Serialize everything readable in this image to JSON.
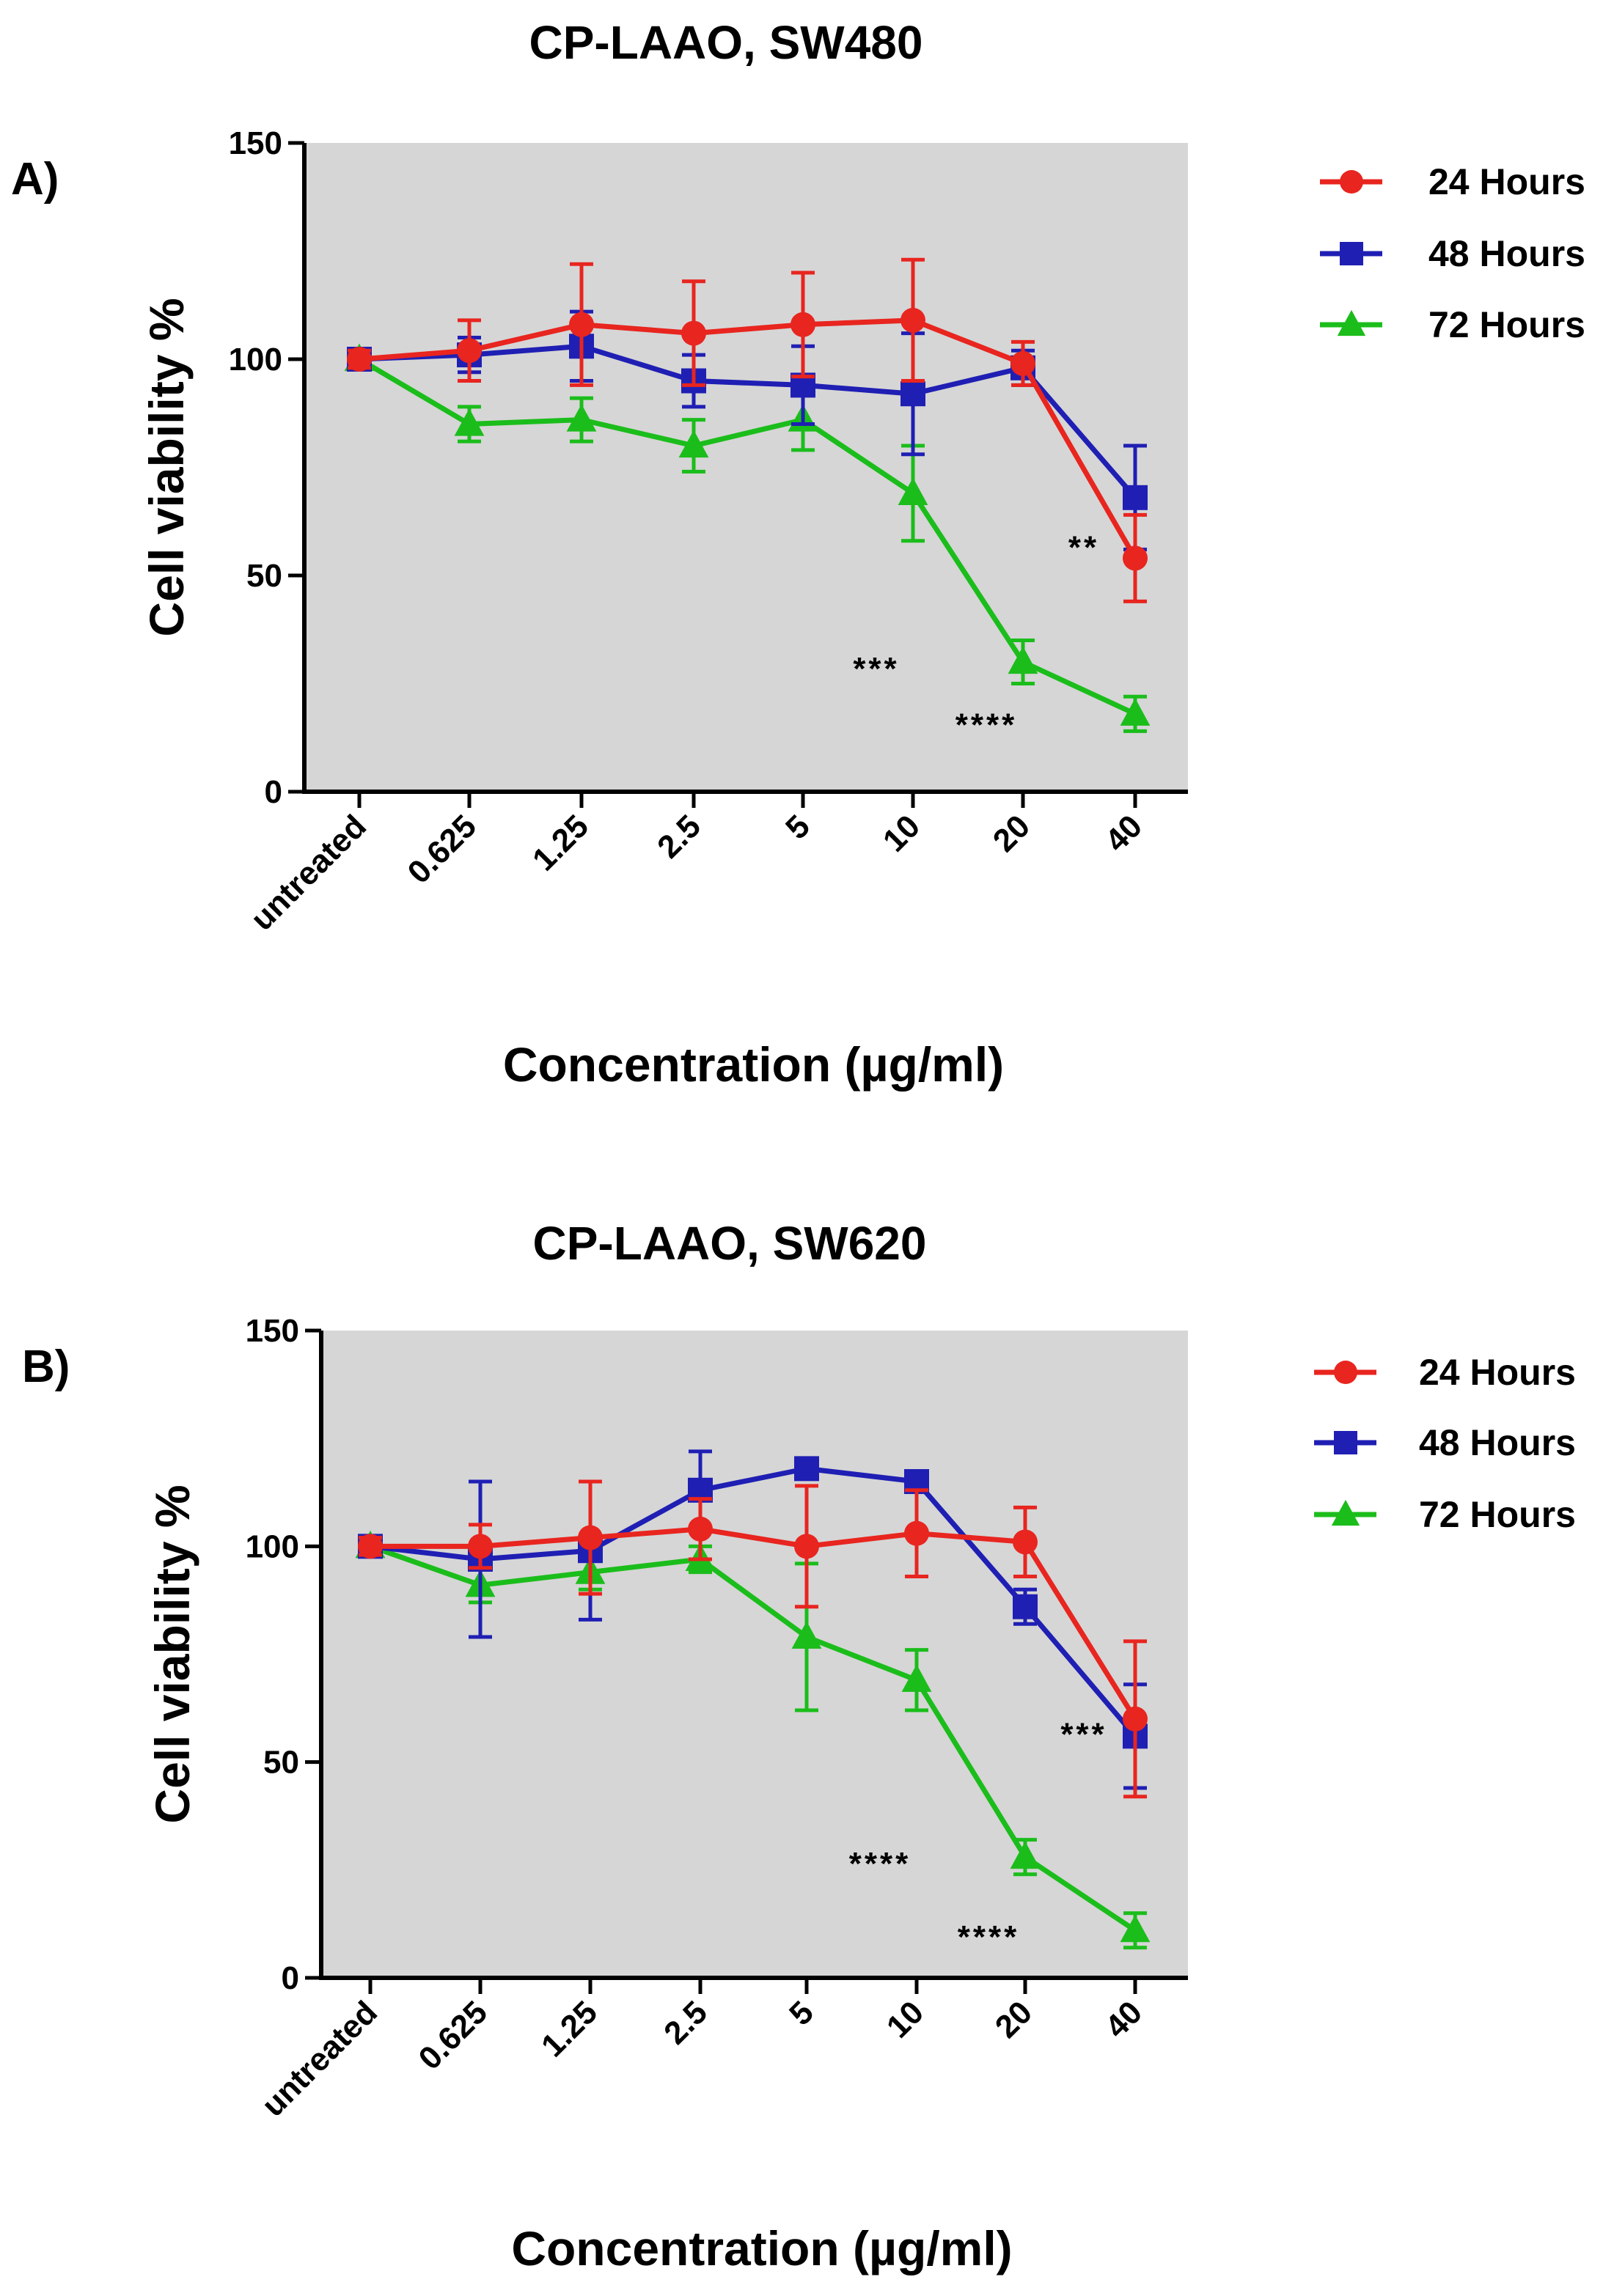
{
  "chart_data": [
    {
      "type": "line",
      "panel_label": "A)",
      "title": "CP-LAAO, SW480",
      "xlabel": "Concentration (µg/ml)",
      "ylabel": "Cell viability %",
      "categories": [
        "untreated",
        "0.625",
        "1.25",
        "2.5",
        "5",
        "10",
        "20",
        "40"
      ],
      "ylim": [
        0,
        150
      ],
      "yticks": [
        "0",
        "50",
        "100",
        "150"
      ],
      "plot_background": "#d6d6d6",
      "legend_position": "right",
      "series": [
        {
          "name": "24 Hours",
          "color": "#e8251f",
          "marker": "circle",
          "values": [
            100,
            102,
            108,
            106,
            108,
            109,
            99,
            54
          ],
          "errors": [
            2,
            7,
            14,
            12,
            12,
            14,
            5,
            10
          ]
        },
        {
          "name": "48 Hours",
          "color": "#1f1fb4",
          "marker": "square",
          "values": [
            100,
            101,
            103,
            95,
            94,
            92,
            98,
            68
          ],
          "errors": [
            2,
            4,
            8,
            6,
            9,
            14,
            4,
            12
          ]
        },
        {
          "name": "72 Hours",
          "color": "#1bbd1b",
          "marker": "triangle",
          "values": [
            100,
            85,
            86,
            80,
            86,
            69,
            30,
            18
          ],
          "errors": [
            2,
            4,
            5,
            6,
            7,
            11,
            5,
            4
          ]
        }
      ],
      "annotations": [
        {
          "text": "**",
          "category_index": 7,
          "y": 56
        },
        {
          "text": "***",
          "category_index": 5,
          "y": 28
        },
        {
          "text": "****",
          "category_index": 6,
          "y": 15
        }
      ]
    },
    {
      "type": "line",
      "panel_label": "B)",
      "title": "CP-LAAO, SW620",
      "xlabel": "Concentration (µg/ml)",
      "ylabel": "Cell viability %",
      "categories": [
        "untreated",
        "0.625",
        "1.25",
        "2.5",
        "5",
        "10",
        "20",
        "40"
      ],
      "ylim": [
        0,
        150
      ],
      "yticks": [
        "0",
        "50",
        "100",
        "150"
      ],
      "plot_background": "#d6d6d6",
      "legend_position": "right",
      "series": [
        {
          "name": "24 Hours",
          "color": "#e8251f",
          "marker": "circle",
          "values": [
            100,
            100,
            102,
            104,
            100,
            103,
            101,
            60
          ],
          "errors": [
            2,
            5,
            13,
            7,
            14,
            10,
            8,
            18
          ]
        },
        {
          "name": "48 Hours",
          "color": "#1f1fb4",
          "marker": "square",
          "values": [
            100,
            97,
            99,
            113,
            118,
            115,
            86,
            56
          ],
          "errors": [
            2,
            18,
            16,
            9,
            2,
            2,
            4,
            12
          ]
        },
        {
          "name": "72 Hours",
          "color": "#1bbd1b",
          "marker": "triangle",
          "values": [
            100,
            91,
            94,
            97,
            79,
            69,
            28,
            11
          ],
          "errors": [
            2,
            4,
            4,
            3,
            17,
            7,
            4,
            4
          ]
        }
      ],
      "annotations": [
        {
          "text": "***",
          "category_index": 7,
          "y": 56
        },
        {
          "text": "****",
          "category_index": 5,
          "y": 26
        },
        {
          "text": "****",
          "category_index": 6,
          "y": 9
        }
      ]
    }
  ]
}
